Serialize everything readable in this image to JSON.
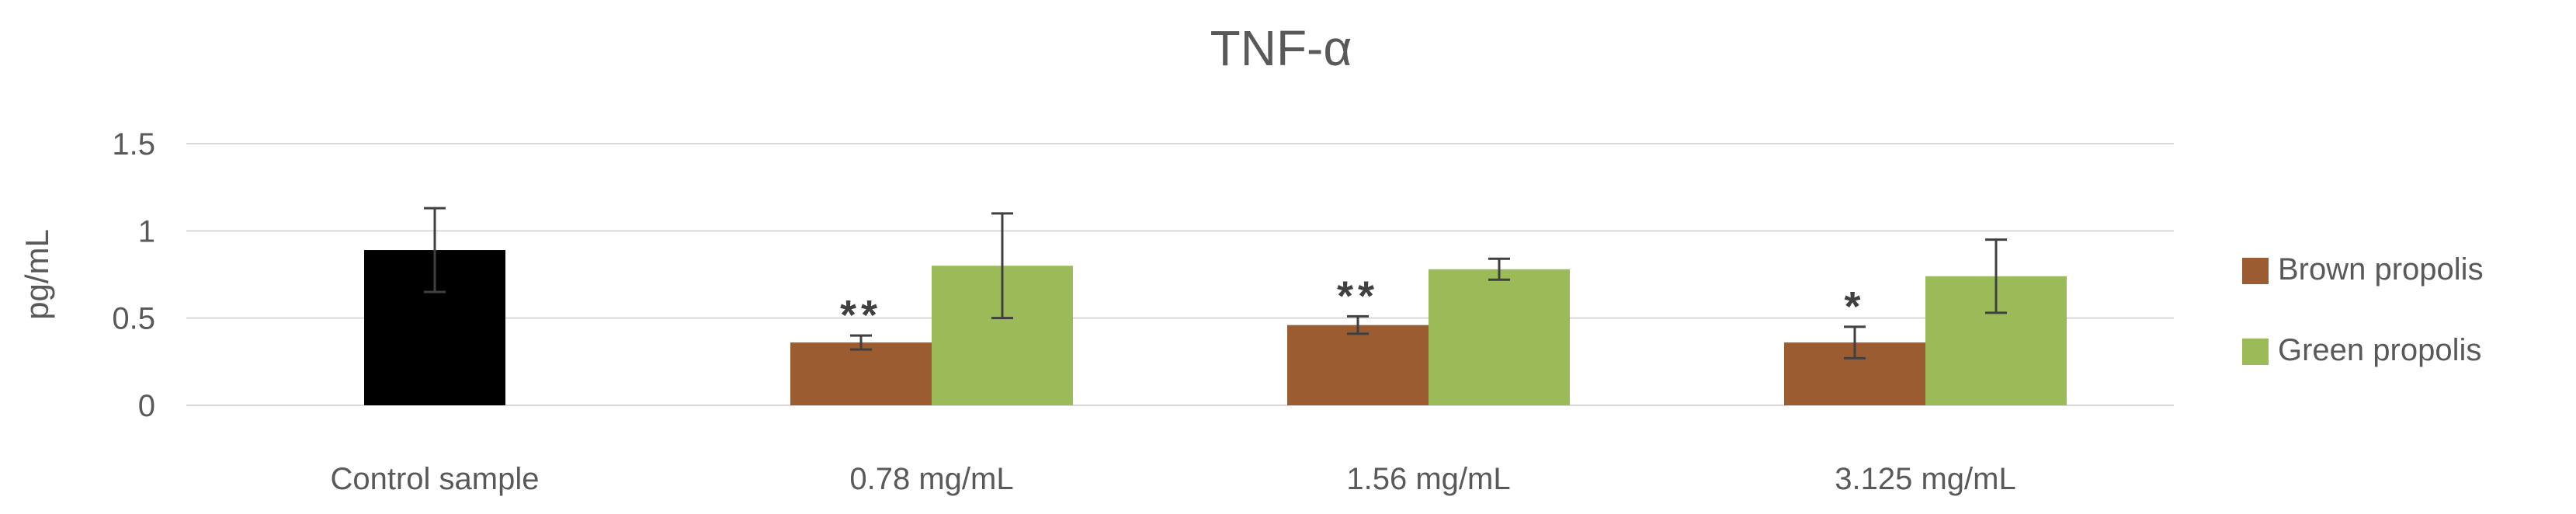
{
  "chart_data": {
    "type": "bar",
    "title": "TNF-α",
    "xlabel": "",
    "ylabel": "pg/mL",
    "ylim": [
      0,
      1.5
    ],
    "yticks": [
      0,
      0.5,
      1,
      1.5
    ],
    "ytick_labels": [
      "0",
      "0.5",
      "1",
      "1.5"
    ],
    "grid": true,
    "legend_position": "right",
    "categories": [
      "Control sample",
      "0.78 mg/mL",
      "1.56 mg/mL",
      "3.125 mg/mL"
    ],
    "control": {
      "name": "Control sample",
      "value": 0.89,
      "error": 0.24,
      "color": "#000000"
    },
    "series": [
      {
        "name": "Brown propolis",
        "color": "#9B5C31",
        "values": [
          null,
          0.36,
          0.46,
          0.36
        ],
        "errors": [
          null,
          0.04,
          0.05,
          0.09
        ],
        "significance": [
          null,
          "**",
          "**",
          "*"
        ]
      },
      {
        "name": "Green propolis",
        "color": "#9BBB59",
        "values": [
          null,
          0.8,
          0.78,
          0.74
        ],
        "errors": [
          null,
          0.3,
          0.06,
          0.21
        ],
        "significance": [
          null,
          null,
          null,
          null
        ]
      }
    ]
  }
}
